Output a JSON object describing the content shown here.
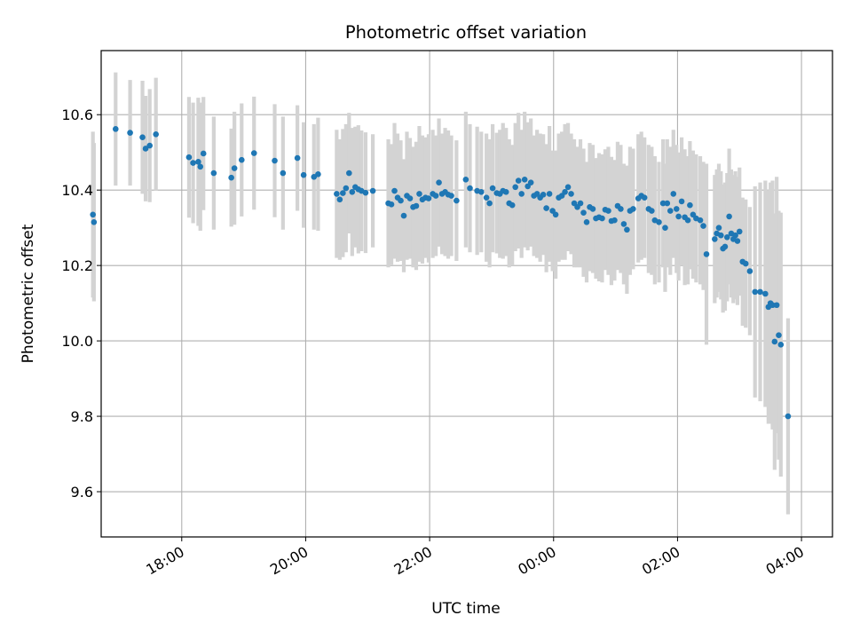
{
  "chart_data": {
    "type": "scatter",
    "title": "Photometric offset variation",
    "xlabel": "UTC time",
    "ylabel": "Photometric offset",
    "xlim": [
      "16:42",
      "04:30"
    ],
    "ylim": [
      9.48,
      10.77
    ],
    "grid": true,
    "x_ticks": [
      "18:00",
      "20:00",
      "22:00",
      "00:00",
      "02:00",
      "04:00"
    ],
    "y_ticks": [
      "9.6",
      "9.8",
      "10.0",
      "10.2",
      "10.4",
      "10.6"
    ],
    "marker_color": "#1f77b4",
    "errorbar_color": "#d3d3d3",
    "series": [
      {
        "points": [
          [
            "16:34",
            10.335,
            0.22
          ],
          [
            "16:35",
            10.315,
            0.21
          ],
          [
            "16:56",
            10.562,
            0.15
          ],
          [
            "17:10",
            10.552,
            0.14
          ],
          [
            "17:22",
            10.54,
            0.15
          ],
          [
            "17:25",
            10.51,
            0.14
          ],
          [
            "17:29",
            10.518,
            0.15
          ],
          [
            "17:35",
            10.548,
            0.15
          ],
          [
            "18:07",
            10.487,
            0.16
          ],
          [
            "18:11",
            10.472,
            0.16
          ],
          [
            "18:16",
            10.475,
            0.17
          ],
          [
            "18:18",
            10.462,
            0.17
          ],
          [
            "18:21",
            10.497,
            0.15
          ],
          [
            "18:31",
            10.445,
            0.15
          ],
          [
            "18:48",
            10.433,
            0.13
          ],
          [
            "18:51",
            10.458,
            0.15
          ],
          [
            "18:58",
            10.48,
            0.15
          ],
          [
            "19:10",
            10.498,
            0.15
          ],
          [
            "19:30",
            10.478,
            0.15
          ],
          [
            "19:38",
            10.445,
            0.15
          ],
          [
            "19:52",
            10.485,
            0.14
          ],
          [
            "19:58",
            10.44,
            0.14
          ],
          [
            "20:08",
            10.435,
            0.14
          ],
          [
            "20:12",
            10.442,
            0.15
          ],
          [
            "20:30",
            10.39,
            0.17
          ],
          [
            "20:33",
            10.375,
            0.16
          ],
          [
            "20:36",
            10.392,
            0.17
          ],
          [
            "20:39",
            10.405,
            0.17
          ],
          [
            "20:42",
            10.445,
            0.16
          ],
          [
            "20:45",
            10.395,
            0.17
          ],
          [
            "20:48",
            10.408,
            0.16
          ],
          [
            "20:51",
            10.402,
            0.17
          ],
          [
            "20:54",
            10.398,
            0.16
          ],
          [
            "20:58",
            10.393,
            0.16
          ],
          [
            "21:05",
            10.398,
            0.15
          ],
          [
            "21:20",
            10.365,
            0.17
          ],
          [
            "21:23",
            10.362,
            0.16
          ],
          [
            "21:26",
            10.398,
            0.18
          ],
          [
            "21:29",
            10.38,
            0.17
          ],
          [
            "21:32",
            10.372,
            0.16
          ],
          [
            "21:35",
            10.332,
            0.15
          ],
          [
            "21:38",
            10.385,
            0.17
          ],
          [
            "21:41",
            10.378,
            0.16
          ],
          [
            "21:44",
            10.355,
            0.16
          ],
          [
            "21:47",
            10.358,
            0.17
          ],
          [
            "21:50",
            10.39,
            0.18
          ],
          [
            "21:53",
            10.375,
            0.17
          ],
          [
            "21:56",
            10.38,
            0.16
          ],
          [
            "21:59",
            10.378,
            0.17
          ],
          [
            "22:03",
            10.39,
            0.17
          ],
          [
            "22:06",
            10.385,
            0.16
          ],
          [
            "22:09",
            10.42,
            0.17
          ],
          [
            "22:12",
            10.39,
            0.16
          ],
          [
            "22:15",
            10.395,
            0.17
          ],
          [
            "22:18",
            10.388,
            0.17
          ],
          [
            "22:21",
            10.385,
            0.16
          ],
          [
            "22:26",
            10.372,
            0.16
          ],
          [
            "22:35",
            10.428,
            0.18
          ],
          [
            "22:39",
            10.405,
            0.17
          ],
          [
            "22:46",
            10.398,
            0.17
          ],
          [
            "22:50",
            10.395,
            0.16
          ],
          [
            "22:55",
            10.38,
            0.17
          ],
          [
            "22:58",
            10.365,
            0.17
          ],
          [
            "23:01",
            10.405,
            0.17
          ],
          [
            "23:05",
            10.392,
            0.16
          ],
          [
            "23:08",
            10.39,
            0.17
          ],
          [
            "23:11",
            10.398,
            0.18
          ],
          [
            "23:14",
            10.395,
            0.17
          ],
          [
            "23:17",
            10.365,
            0.17
          ],
          [
            "23:20",
            10.36,
            0.16
          ],
          [
            "23:23",
            10.408,
            0.17
          ],
          [
            "23:26",
            10.425,
            0.18
          ],
          [
            "23:29",
            10.39,
            0.17
          ],
          [
            "23:32",
            10.428,
            0.18
          ],
          [
            "23:35",
            10.41,
            0.17
          ],
          [
            "23:38",
            10.42,
            0.17
          ],
          [
            "23:41",
            10.385,
            0.16
          ],
          [
            "23:44",
            10.39,
            0.17
          ],
          [
            "23:47",
            10.38,
            0.17
          ],
          [
            "23:50",
            10.388,
            0.16
          ],
          [
            "23:53",
            10.352,
            0.17
          ],
          [
            "23:56",
            10.39,
            0.18
          ],
          [
            "23:59",
            10.345,
            0.16
          ],
          [
            "00:02",
            10.335,
            0.17
          ],
          [
            "00:05",
            10.38,
            0.17
          ],
          [
            "00:08",
            10.385,
            0.17
          ],
          [
            "00:11",
            10.395,
            0.18
          ],
          [
            "00:14",
            10.408,
            0.17
          ],
          [
            "00:17",
            10.39,
            0.16
          ],
          [
            "00:20",
            10.365,
            0.17
          ],
          [
            "00:23",
            10.355,
            0.16
          ],
          [
            "00:26",
            10.365,
            0.17
          ],
          [
            "00:29",
            10.34,
            0.17
          ],
          [
            "00:32",
            10.315,
            0.16
          ],
          [
            "00:35",
            10.355,
            0.17
          ],
          [
            "00:38",
            10.35,
            0.17
          ],
          [
            "00:41",
            10.325,
            0.16
          ],
          [
            "00:44",
            10.328,
            0.17
          ],
          [
            "00:47",
            10.325,
            0.17
          ],
          [
            "00:50",
            10.348,
            0.16
          ],
          [
            "00:53",
            10.345,
            0.17
          ],
          [
            "00:56",
            10.318,
            0.17
          ],
          [
            "00:59",
            10.32,
            0.16
          ],
          [
            "01:02",
            10.358,
            0.17
          ],
          [
            "01:05",
            10.35,
            0.17
          ],
          [
            "01:08",
            10.31,
            0.16
          ],
          [
            "01:11",
            10.295,
            0.17
          ],
          [
            "01:14",
            10.345,
            0.17
          ],
          [
            "01:17",
            10.35,
            0.16
          ],
          [
            "01:22",
            10.378,
            0.17
          ],
          [
            "01:25",
            10.385,
            0.17
          ],
          [
            "01:28",
            10.38,
            0.16
          ],
          [
            "01:32",
            10.35,
            0.17
          ],
          [
            "01:35",
            10.345,
            0.17
          ],
          [
            "01:38",
            10.32,
            0.17
          ],
          [
            "01:42",
            10.315,
            0.16
          ],
          [
            "01:46",
            10.365,
            0.17
          ],
          [
            "01:48",
            10.3,
            0.17
          ],
          [
            "01:50",
            10.365,
            0.17
          ],
          [
            "01:53",
            10.345,
            0.17
          ],
          [
            "01:56",
            10.39,
            0.17
          ],
          [
            "01:59",
            10.35,
            0.17
          ],
          [
            "02:01",
            10.33,
            0.17
          ],
          [
            "02:04",
            10.37,
            0.17
          ],
          [
            "02:07",
            10.328,
            0.18
          ],
          [
            "02:10",
            10.32,
            0.17
          ],
          [
            "02:12",
            10.36,
            0.17
          ],
          [
            "02:15",
            10.335,
            0.17
          ],
          [
            "02:18",
            10.325,
            0.17
          ],
          [
            "02:22",
            10.32,
            0.17
          ],
          [
            "02:25",
            10.305,
            0.17
          ],
          [
            "02:28",
            10.23,
            0.24
          ],
          [
            "02:36",
            10.27,
            0.17
          ],
          [
            "02:38",
            10.285,
            0.17
          ],
          [
            "02:40",
            10.3,
            0.17
          ],
          [
            "02:42",
            10.28,
            0.17
          ],
          [
            "02:44",
            10.245,
            0.17
          ],
          [
            "02:46",
            10.25,
            0.17
          ],
          [
            "02:48",
            10.275,
            0.17
          ],
          [
            "02:50",
            10.33,
            0.18
          ],
          [
            "02:52",
            10.285,
            0.17
          ],
          [
            "02:54",
            10.27,
            0.17
          ],
          [
            "02:56",
            10.28,
            0.17
          ],
          [
            "02:58",
            10.265,
            0.17
          ],
          [
            "03:00",
            10.29,
            0.17
          ],
          [
            "03:03",
            10.21,
            0.17
          ],
          [
            "03:06",
            10.205,
            0.17
          ],
          [
            "03:10",
            10.185,
            0.17
          ],
          [
            "03:15",
            10.13,
            0.28
          ],
          [
            "03:20",
            10.13,
            0.29
          ],
          [
            "03:25",
            10.125,
            0.3
          ],
          [
            "03:28",
            10.09,
            0.31
          ],
          [
            "03:30",
            10.1,
            0.32
          ],
          [
            "03:32",
            10.095,
            0.33
          ],
          [
            "03:34",
            9.998,
            0.34
          ],
          [
            "03:36",
            10.095,
            0.34
          ],
          [
            "03:38",
            10.015,
            0.33
          ],
          [
            "03:40",
            9.99,
            0.35
          ],
          [
            "03:47",
            9.8,
            0.26
          ]
        ]
      }
    ]
  }
}
